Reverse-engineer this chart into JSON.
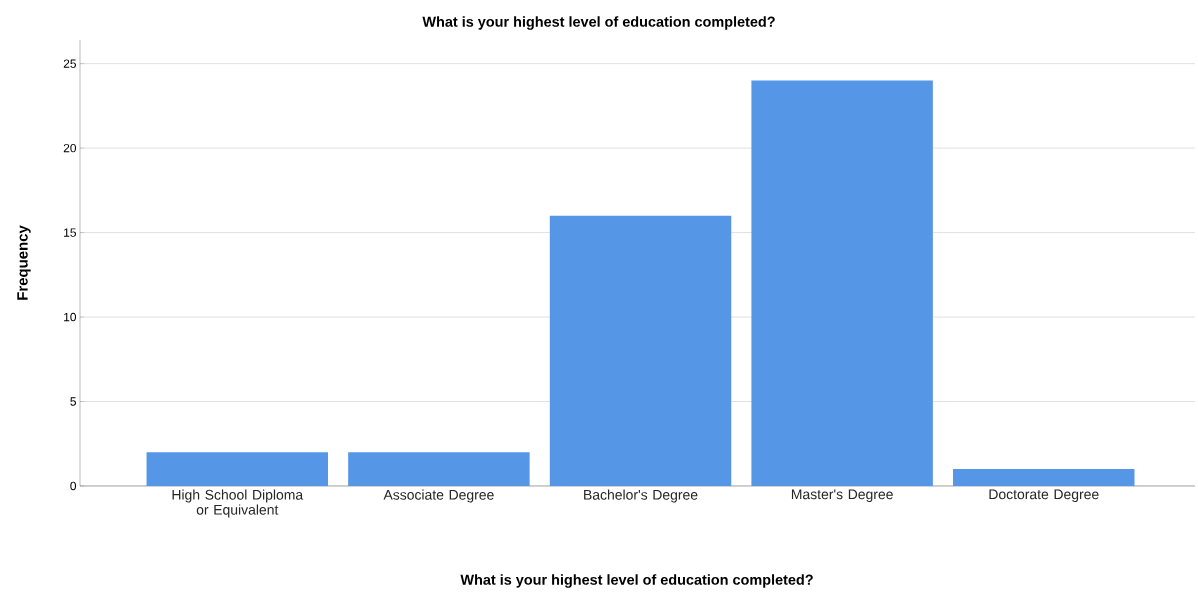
{
  "chart_data": {
    "type": "bar",
    "title": "What is your highest level of education completed?",
    "xlabel": "What is your highest level of education completed?",
    "ylabel": "Frequency",
    "categories": [
      "High School Diploma or Equivalent",
      "Associate Degree",
      "Bachelor's Degree",
      "Master's Degree",
      "Doctorate Degree"
    ],
    "values": [
      2,
      2,
      16,
      24,
      1
    ],
    "color": "#5596e6",
    "ylim": [
      0,
      26.4
    ],
    "yticks": [
      0,
      5,
      10,
      15,
      20,
      25
    ],
    "grid": "y"
  }
}
